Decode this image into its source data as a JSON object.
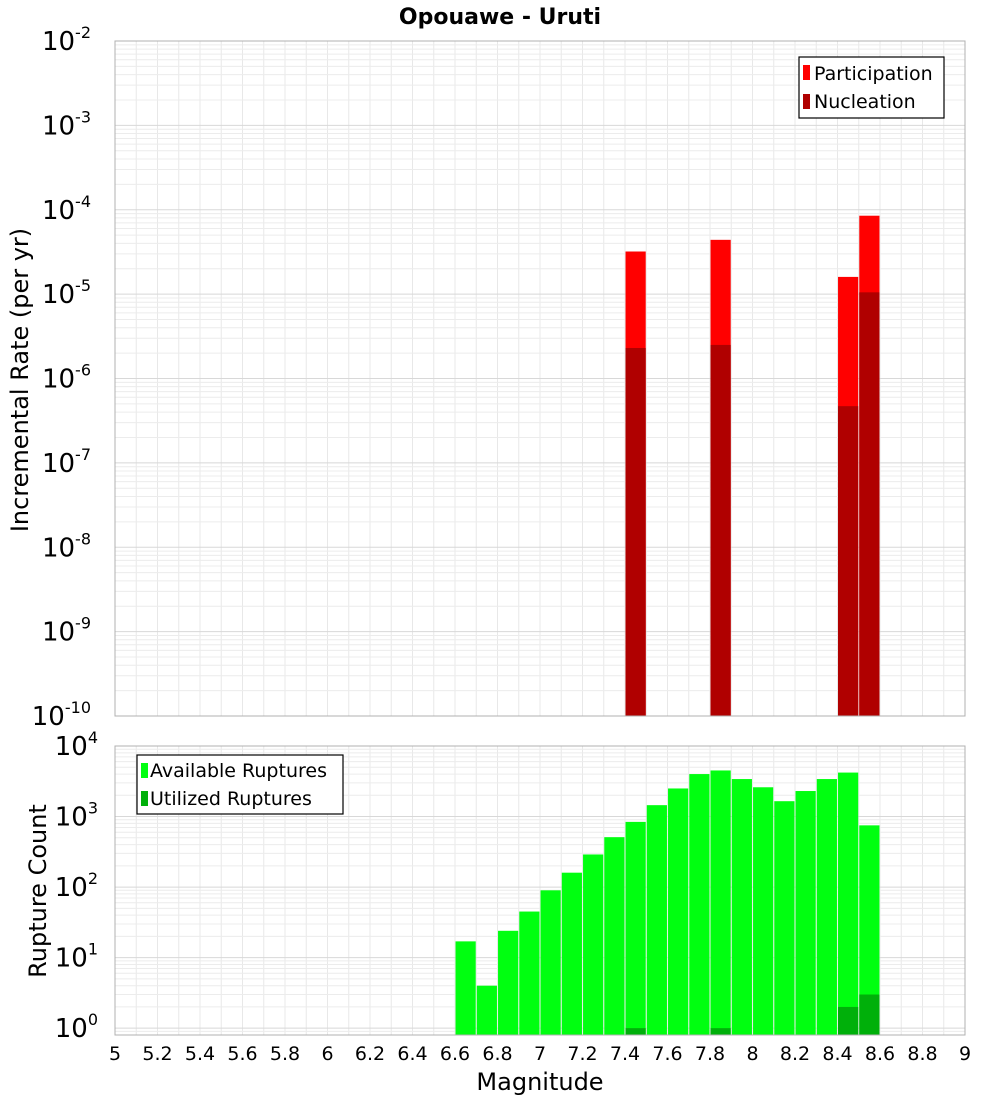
{
  "chart_data": [
    {
      "type": "bar",
      "title": "Opouawe - Uruti",
      "xlabel": "",
      "ylabel": "Incremental Rate (per yr)",
      "xlim": [
        5,
        9
      ],
      "ylim": [
        1e-10,
        0.01
      ],
      "yscale": "log",
      "y_tick_exponents": [
        -10,
        -9,
        -8,
        -7,
        -6,
        -5,
        -4,
        -3,
        -2
      ],
      "grid": true,
      "legend_position": "top-right",
      "series": [
        {
          "name": "Participation",
          "color": "#ff0000",
          "x": [
            7.45,
            7.85,
            8.45,
            8.55
          ],
          "values": [
            3.2e-05,
            4.4e-05,
            1.6e-05,
            8.5e-05
          ]
        },
        {
          "name": "Nucleation",
          "color": "#b00000",
          "x": [
            7.45,
            7.85,
            8.45,
            8.55
          ],
          "values": [
            2.3e-06,
            2.5e-06,
            4.7e-07,
            1.05e-05
          ]
        }
      ]
    },
    {
      "type": "bar",
      "title": "",
      "xlabel": "Magnitude",
      "ylabel": "Rupture Count",
      "xlim": [
        5,
        9
      ],
      "x_ticks": [
        "5",
        "5.2",
        "5.4",
        "5.6",
        "5.8",
        "6",
        "6.2",
        "6.4",
        "6.6",
        "6.8",
        "7",
        "7.2",
        "7.4",
        "7.6",
        "7.8",
        "8",
        "8.2",
        "8.4",
        "8.6",
        "8.8",
        "9"
      ],
      "ylim": [
        0.8,
        10000
      ],
      "yscale": "log",
      "y_tick_exponents": [
        0,
        1,
        2,
        3,
        4
      ],
      "grid": true,
      "legend_position": "top-left",
      "series": [
        {
          "name": "Available Ruptures",
          "color": "#00ff10",
          "x": [
            6.65,
            6.75,
            6.85,
            6.95,
            7.05,
            7.15,
            7.25,
            7.35,
            7.45,
            7.55,
            7.65,
            7.75,
            7.85,
            7.95,
            8.05,
            8.15,
            8.25,
            8.35,
            8.45,
            8.55
          ],
          "values": [
            17,
            4,
            24,
            45,
            90,
            160,
            290,
            510,
            840,
            1450,
            2500,
            4000,
            4500,
            3400,
            2600,
            1650,
            2300,
            3400,
            4200,
            750
          ]
        },
        {
          "name": "Utilized Ruptures",
          "color": "#00b00a",
          "x": [
            7.45,
            7.85,
            8.45,
            8.55
          ],
          "values": [
            1,
            1,
            2,
            3
          ]
        }
      ]
    }
  ]
}
